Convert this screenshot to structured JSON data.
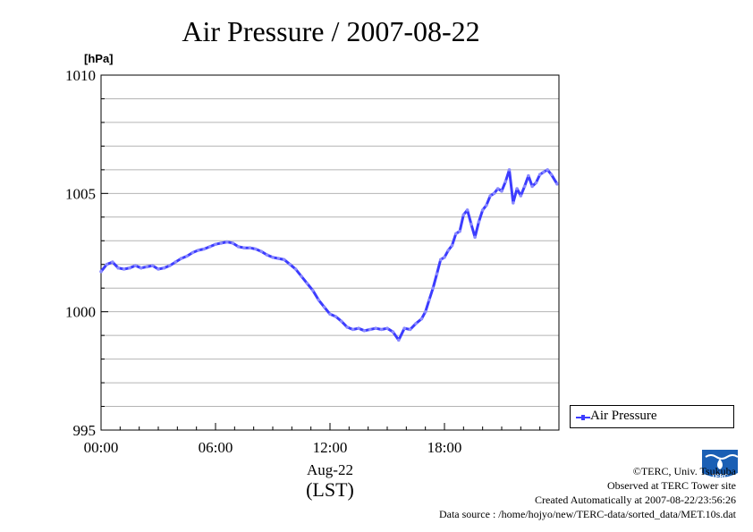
{
  "chart_data": {
    "type": "line",
    "title": "Air Pressure / 2007-08-22",
    "ylabel": "[hPa]",
    "xlabel_line1": "Aug-22",
    "xlabel_line2": "(LST)",
    "xlim": [
      0,
      24
    ],
    "ylim": [
      995,
      1010
    ],
    "x_ticks": [
      {
        "value": 0,
        "label": "00:00"
      },
      {
        "value": 6,
        "label": "06:00"
      },
      {
        "value": 12,
        "label": "12:00"
      },
      {
        "value": 18,
        "label": "18:00"
      }
    ],
    "y_ticks": [
      {
        "value": 995,
        "label": "995"
      },
      {
        "value": 1000,
        "label": "1000"
      },
      {
        "value": 1005,
        "label": "1005"
      },
      {
        "value": 1010,
        "label": "1010"
      }
    ],
    "grid": true,
    "legend_position": "bottom-right, outside plot",
    "series": [
      {
        "name": "Air Pressure",
        "color": "#3c3cff",
        "x": [
          0.0,
          0.3,
          0.6,
          0.9,
          1.2,
          1.5,
          1.8,
          2.1,
          2.4,
          2.7,
          3.0,
          3.3,
          3.6,
          3.9,
          4.2,
          4.5,
          4.8,
          5.1,
          5.4,
          5.7,
          6.0,
          6.3,
          6.6,
          6.9,
          7.2,
          7.5,
          7.8,
          8.1,
          8.4,
          8.7,
          9.0,
          9.3,
          9.6,
          9.9,
          10.2,
          10.5,
          10.8,
          11.1,
          11.4,
          11.7,
          12.0,
          12.3,
          12.6,
          12.9,
          13.2,
          13.5,
          13.8,
          14.1,
          14.4,
          14.7,
          15.0,
          15.3,
          15.6,
          15.9,
          16.2,
          16.5,
          16.8,
          17.0,
          17.2,
          17.4,
          17.6,
          17.8,
          18.0,
          18.2,
          18.4,
          18.6,
          18.8,
          19.0,
          19.2,
          19.4,
          19.6,
          19.8,
          20.0,
          20.2,
          20.4,
          20.6,
          20.8,
          21.0,
          21.2,
          21.4,
          21.6,
          21.8,
          22.0,
          22.2,
          22.4,
          22.6,
          22.8,
          23.0,
          23.2,
          23.4,
          23.6,
          23.9
        ],
        "values": [
          1001.7,
          1002.0,
          1002.1,
          1001.85,
          1001.8,
          1001.85,
          1001.95,
          1001.85,
          1001.9,
          1001.95,
          1001.8,
          1001.85,
          1001.95,
          1002.1,
          1002.25,
          1002.35,
          1002.5,
          1002.6,
          1002.65,
          1002.75,
          1002.85,
          1002.9,
          1002.95,
          1002.9,
          1002.75,
          1002.7,
          1002.7,
          1002.65,
          1002.55,
          1002.4,
          1002.3,
          1002.25,
          1002.2,
          1002.0,
          1001.8,
          1001.5,
          1001.2,
          1000.9,
          1000.5,
          1000.2,
          999.9,
          999.8,
          999.6,
          999.35,
          999.25,
          999.3,
          999.2,
          999.25,
          999.3,
          999.25,
          999.3,
          999.15,
          998.8,
          999.3,
          999.25,
          999.5,
          999.7,
          1000.0,
          1000.5,
          1001.0,
          1001.6,
          1002.2,
          1002.3,
          1002.6,
          1002.8,
          1003.3,
          1003.4,
          1004.1,
          1004.3,
          1003.7,
          1003.15,
          1003.8,
          1004.3,
          1004.5,
          1004.9,
          1005.0,
          1005.2,
          1005.1,
          1005.5,
          1006.0,
          1004.6,
          1005.2,
          1004.9,
          1005.3,
          1005.75,
          1005.3,
          1005.45,
          1005.8,
          1005.9,
          1006.0,
          1005.8,
          1005.4
        ]
      }
    ]
  },
  "legend": {
    "label": "Air Pressure"
  },
  "credits": {
    "line1": "©TERC, Univ. Tsukuba",
    "line2": "Observed at TERC Tower site",
    "line3": "Created Automatically at 2007-08-22/23:56:26",
    "line4": "Data source : /home/hojyo/new/TERC-data/sorted_data/MET.10s.dat"
  },
  "logo": {
    "text": "TERC",
    "color": "#1a5fb4"
  }
}
